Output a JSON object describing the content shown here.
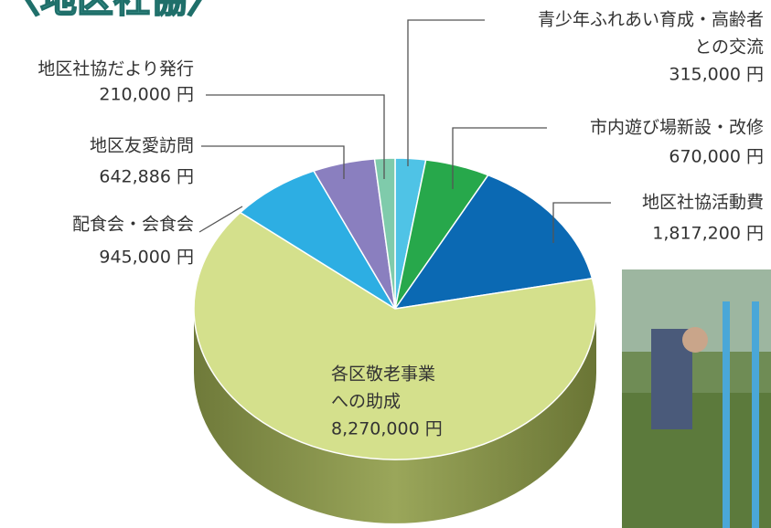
{
  "chart_data": {
    "type": "pie",
    "title": "〈地区社協〉",
    "categories": [
      [
        "青少年ふれあい育成・高齢者",
        "との交流"
      ],
      [
        "市内遊び場新設・改修"
      ],
      [
        "地区社協活動費"
      ],
      [
        "各区敬老事業",
        "への助成"
      ],
      [
        "配食会・会食会"
      ],
      [
        "地区友愛訪問"
      ],
      [
        "地区社協だより発行"
      ]
    ],
    "values": [
      315000,
      670000,
      1817200,
      8270000,
      945000,
      642886,
      210000
    ],
    "value_labels": [
      "315,000 円",
      "670,000 円",
      "1,817,200 円",
      "8,270,000 円",
      "945,000 円",
      "642,886 円",
      "210,000 円"
    ],
    "colors": [
      "#4fc3e6",
      "#27a84b",
      "#0b69b3",
      "#d4e08c",
      "#2daee3",
      "#8a7fbf",
      "#7fcbab"
    ]
  }
}
